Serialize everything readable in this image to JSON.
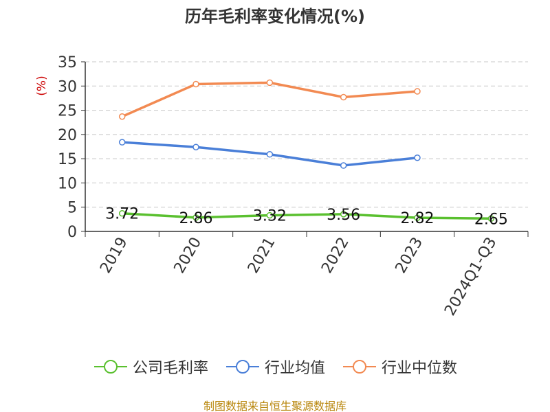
{
  "title": "历年毛利率变化情况(%)",
  "source": "制图数据来自恒生聚源数据库",
  "chart_data": {
    "type": "line",
    "title": "历年毛利率变化情况(%)",
    "ylabel": "(%)",
    "xlabel": "",
    "categories": [
      "2019",
      "2020",
      "2021",
      "2022",
      "2023",
      "2024Q1-Q3"
    ],
    "ylim": [
      0,
      35
    ],
    "yticks": [
      0,
      5,
      10,
      15,
      20,
      25,
      30,
      35
    ],
    "grid": true,
    "legend_position": "bottom",
    "series": [
      {
        "name": "公司毛利率",
        "color": "#5ac02f",
        "values": [
          3.72,
          2.86,
          3.32,
          3.56,
          2.82,
          2.65
        ],
        "labels": [
          "3.72",
          "2.86",
          "3.32",
          "3.56",
          "2.82",
          "2.65"
        ]
      },
      {
        "name": "行业均值",
        "color": "#4a7fd8",
        "values": [
          18.4,
          17.4,
          15.9,
          13.6,
          15.2,
          null
        ]
      },
      {
        "name": "行业中位数",
        "color": "#f28a52",
        "values": [
          23.7,
          30.4,
          30.7,
          27.7,
          28.9,
          null
        ]
      }
    ],
    "ylabel_color": "#cc0000"
  }
}
